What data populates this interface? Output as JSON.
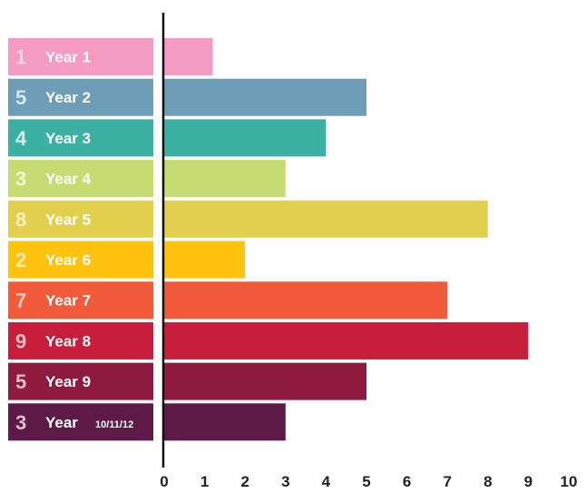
{
  "chart_data": {
    "type": "bar",
    "orientation": "horizontal",
    "title": "",
    "xlabel": "",
    "ylabel": "",
    "xlim": [
      0,
      10
    ],
    "x_ticks": [
      "0",
      "1",
      "2",
      "3",
      "4",
      "5",
      "6",
      "7",
      "8",
      "9",
      "10"
    ],
    "grid": false,
    "legend": "none",
    "categories": [
      {
        "rank": "1",
        "label": "Year 1",
        "suffix": "",
        "value": 1.2,
        "color": "#F39BC3",
        "rank_color": "#F9CFE2"
      },
      {
        "rank": "5",
        "label": "Year 2",
        "suffix": "",
        "value": 5.0,
        "color": "#6E9DB7",
        "rank_color": "#D7E8F2"
      },
      {
        "rank": "4",
        "label": "Year 3",
        "suffix": "",
        "value": 4.0,
        "color": "#3DB0A4",
        "rank_color": "#CFF1EC"
      },
      {
        "rank": "3",
        "label": "Year 4",
        "suffix": "",
        "value": 3.0,
        "color": "#C6DC73",
        "rank_color": "#F1F8D4"
      },
      {
        "rank": "8",
        "label": "Year 5",
        "suffix": "",
        "value": 8.0,
        "color": "#E2D04C",
        "rank_color": "#F8F1C4"
      },
      {
        "rank": "2",
        "label": "Year 6",
        "suffix": "",
        "value": 2.0,
        "color": "#FFC20E",
        "rank_color": "#FFEDB8"
      },
      {
        "rank": "7",
        "label": "Year 7",
        "suffix": "",
        "value": 7.0,
        "color": "#F15B3C",
        "rank_color": "#FCCFC3"
      },
      {
        "rank": "9",
        "label": "Year 8",
        "suffix": "",
        "value": 9.0,
        "color": "#C81E3C",
        "rank_color": "#F4BDC7"
      },
      {
        "rank": "5",
        "label": "Year 9",
        "suffix": "",
        "value": 5.0,
        "color": "#8E1A40",
        "rank_color": "#E6BDCB"
      },
      {
        "rank": "3",
        "label": "Year ",
        "suffix": "10/11/12",
        "value": 3.0,
        "color": "#5E1A46",
        "rank_color": "#D9BFD1"
      }
    ]
  }
}
